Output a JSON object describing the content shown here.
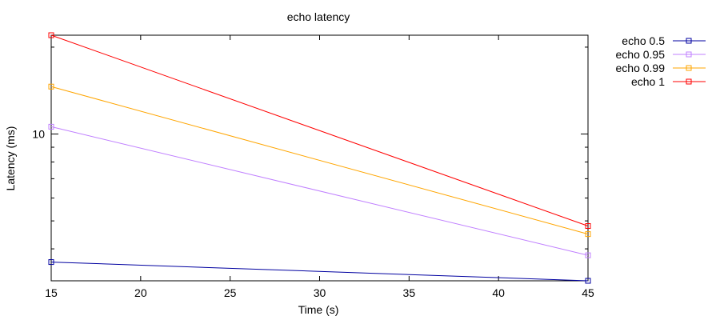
{
  "chart_data": {
    "type": "line",
    "title": "echo latency",
    "xlabel": "Time (s)",
    "ylabel": "Latency (ms)",
    "xlim": [
      15,
      45
    ],
    "ylim": [
      3.1,
      22
    ],
    "yscale": "log",
    "xticks": [
      15,
      20,
      25,
      30,
      35,
      40,
      45
    ],
    "yticks_labeled": [
      10
    ],
    "yticks_minor": [
      4,
      5,
      6,
      7,
      8,
      9,
      20
    ],
    "grid": false,
    "legend_position": "outside-right-top",
    "series": [
      {
        "name": "echo 0.5",
        "color": "#0000a0",
        "x": [
          15,
          45
        ],
        "y": [
          3.6,
          3.1
        ]
      },
      {
        "name": "echo 0.95",
        "color": "#c080ff",
        "x": [
          15,
          45
        ],
        "y": [
          10.6,
          3.8
        ]
      },
      {
        "name": "echo 0.99",
        "color": "#ffa500",
        "x": [
          15,
          45
        ],
        "y": [
          14.6,
          4.5
        ]
      },
      {
        "name": "echo 1",
        "color": "#ff0000",
        "x": [
          15,
          45
        ],
        "y": [
          22.0,
          4.8
        ]
      }
    ]
  }
}
